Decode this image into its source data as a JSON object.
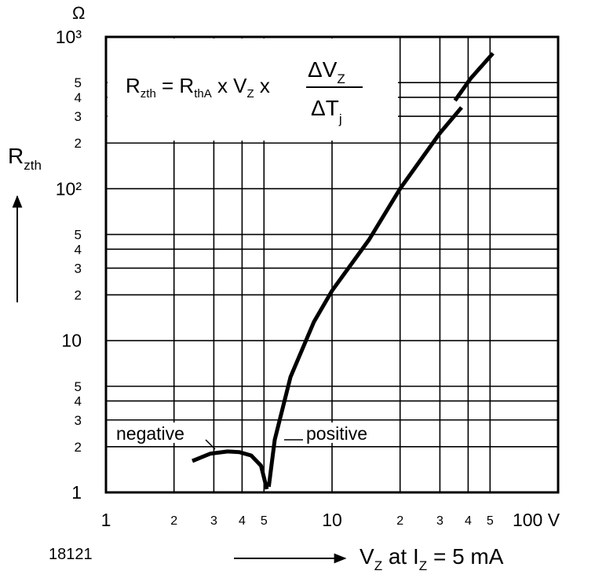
{
  "chart_data": {
    "type": "line",
    "unit_label": "Ω",
    "figure_id": "18121",
    "y_label": {
      "main": "R",
      "sub": "zth"
    },
    "x_label": {
      "v": "V",
      "v_sub": "Z",
      "at": " at I",
      "i_sub": "Z",
      "rest": " = 5 mA"
    },
    "formula": {
      "lhs": "R",
      "lhs_sub": "zth",
      "eq": " = R",
      "rth_sub": "thA",
      "mid": " x V",
      "vz_sub": "Z",
      "times": " x ",
      "num": "ΔV",
      "num_sub": "Z",
      "den": "ΔT",
      "den_sub": "j"
    },
    "log_x": true,
    "log_y": true,
    "grid": true,
    "color": "#000000",
    "xlim": [
      1,
      100
    ],
    "ylim": [
      1,
      1000
    ],
    "xticks": [
      1,
      2,
      3,
      4,
      5,
      10,
      {
        "value": 20,
        "label": "2"
      },
      {
        "value": 30,
        "label": "3"
      },
      {
        "value": 40,
        "label": "4"
      },
      {
        "value": 50,
        "label": "5"
      },
      {
        "value": 100,
        "label": "100 V"
      }
    ],
    "yticks": [
      1,
      2,
      3,
      4,
      5,
      10,
      {
        "value": 20,
        "label": "2"
      },
      {
        "value": 30,
        "label": "3"
      },
      {
        "value": 40,
        "label": "4"
      },
      {
        "value": 50,
        "label": "5"
      },
      {
        "value": 100,
        "label": "10²"
      },
      {
        "value": 200,
        "label": "2"
      },
      {
        "value": 300,
        "label": "3"
      },
      {
        "value": 400,
        "label": "4"
      },
      {
        "value": 500,
        "label": "5"
      },
      {
        "value": 1000,
        "label": "10³"
      }
    ],
    "series": [
      {
        "name": "negative",
        "x": [
          2.41,
          2.9,
          3.45,
          3.9,
          4.39,
          4.85,
          5.15
        ],
        "values": [
          1.61,
          1.8,
          1.86,
          1.84,
          1.75,
          1.5,
          1.05
        ]
      },
      {
        "name": "positive",
        "x": [
          5.25,
          5.58,
          6.55,
          8.32,
          10,
          14.6,
          20,
          29.9,
          37.4
        ],
        "values": [
          1.09,
          2.22,
          5.76,
          13.3,
          21.3,
          46.3,
          100,
          231,
          343
        ]
      },
      {
        "x": [
          35,
          41,
          51.5
        ],
        "values": [
          381,
          532,
          780
        ]
      }
    ]
  }
}
